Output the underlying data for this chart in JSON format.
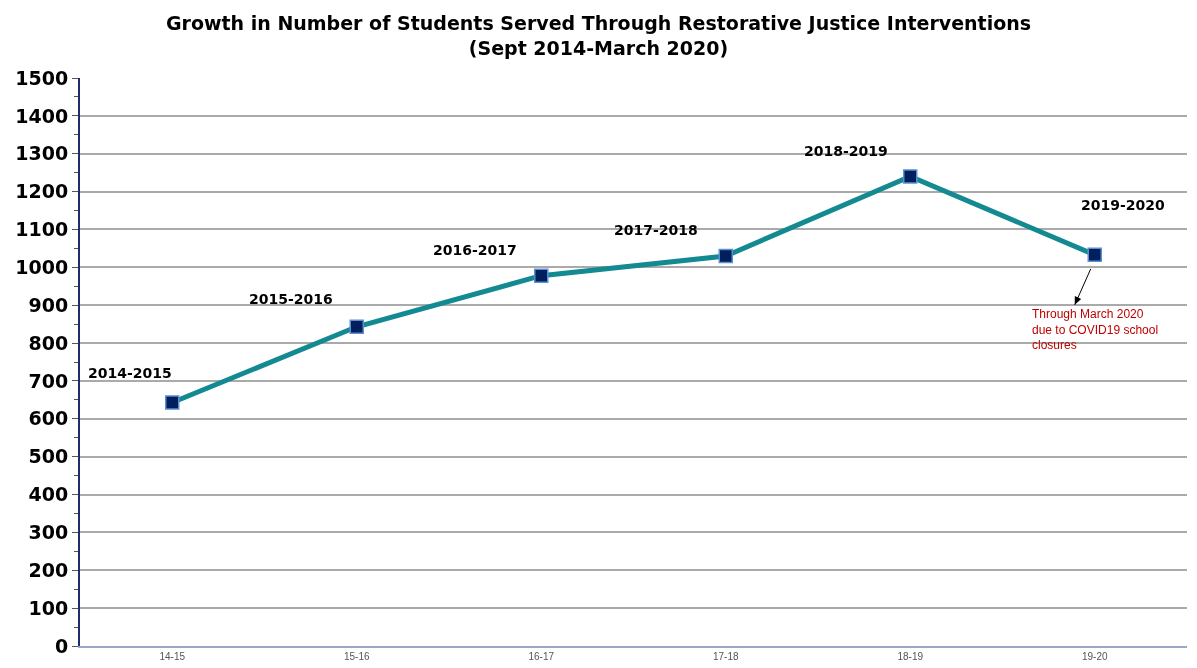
{
  "chart_data": {
    "type": "line",
    "title": "Growth in Number of Students Served Through Restorative Justice Interventions\n(Sept 2014-March 2020)",
    "categories": [
      "14-15",
      "15-16",
      "16-17",
      "17-18",
      "18-19",
      "19-20"
    ],
    "series": [
      {
        "color": "#138a91",
        "values": [
          643,
          843,
          978,
          1030,
          1240,
          1033
        ]
      }
    ],
    "ylim": [
      0,
      1500
    ],
    "yticks": [
      0,
      100,
      200,
      300,
      400,
      500,
      600,
      700,
      800,
      900,
      1000,
      1100,
      1200,
      1300,
      1400,
      1500
    ],
    "grid": "y",
    "marker": "square",
    "line_style": "solid",
    "annotations": [
      {
        "text": "2014-2015",
        "x": "14-15",
        "y": 643
      },
      {
        "text": "2015-2016",
        "x": "15-16",
        "y": 843
      },
      {
        "text": "2016-2017",
        "x": "16-17",
        "y": 978
      },
      {
        "text": "2017-2018",
        "x": "17-18",
        "y": 1030
      },
      {
        "text": "2018-2019",
        "x": "18-19",
        "y": 1240
      },
      {
        "text": "2019-2020",
        "x": "19-20",
        "y": 1033
      },
      "Through March 2020\ndue to COVID19 school\nclosures"
    ]
  }
}
